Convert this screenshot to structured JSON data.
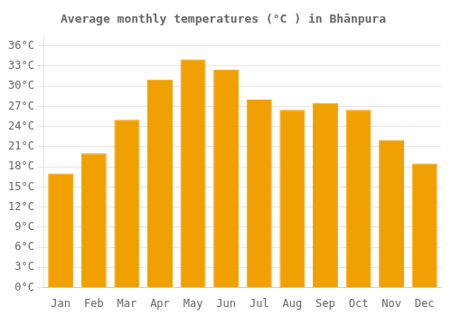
{
  "chart_data": {
    "type": "bar",
    "title": "Average monthly temperatures (°C ) in Bhānpura",
    "categories": [
      "Jan",
      "Feb",
      "Mar",
      "Apr",
      "May",
      "Jun",
      "Jul",
      "Aug",
      "Sep",
      "Oct",
      "Nov",
      "Dec"
    ],
    "values": [
      17.0,
      20.0,
      25.0,
      31.0,
      34.0,
      32.5,
      28.0,
      26.5,
      27.5,
      26.5,
      22.0,
      18.5
    ],
    "color": "#F0A000",
    "ylim": [
      0,
      37.5
    ],
    "yticks": [
      {
        "value": 0,
        "label": "0°C"
      },
      {
        "value": 3,
        "label": "3°C"
      },
      {
        "value": 6,
        "label": "6°C"
      },
      {
        "value": 9,
        "label": "9°C"
      },
      {
        "value": 12,
        "label": "12°C"
      },
      {
        "value": 15,
        "label": "15°C"
      },
      {
        "value": 18,
        "label": "18°C"
      },
      {
        "value": 21,
        "label": "21°C"
      },
      {
        "value": 24,
        "label": "24°C"
      },
      {
        "value": 27,
        "label": "27°C"
      },
      {
        "value": 30,
        "label": "30°C"
      },
      {
        "value": 33,
        "label": "33°C"
      },
      {
        "value": 36,
        "label": "36°C"
      }
    ],
    "grid": true
  }
}
